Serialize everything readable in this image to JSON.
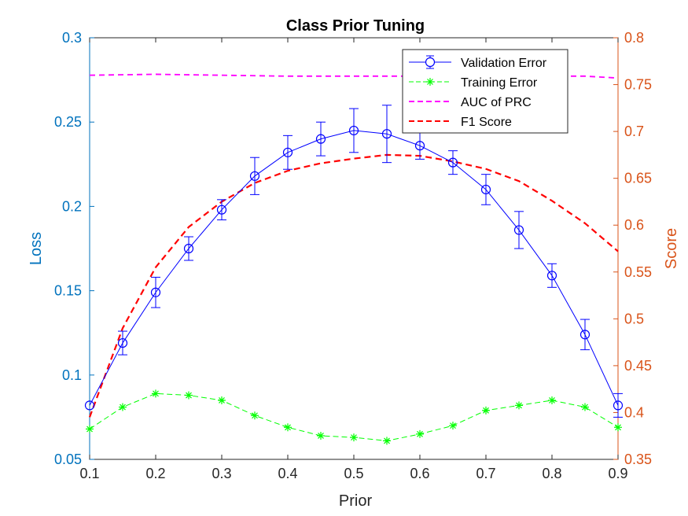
{
  "chart_data": {
    "type": "line",
    "title": "Class Prior Tuning",
    "xlabel": "Prior",
    "ylabel_left": "Loss",
    "ylabel_right": "Score",
    "xlim": [
      0.1,
      0.9
    ],
    "ylim_left": [
      0.05,
      0.3
    ],
    "ylim_right": [
      0.35,
      0.8
    ],
    "x_ticks": [
      "0.1",
      "0.2",
      "0.3",
      "0.4",
      "0.5",
      "0.6",
      "0.7",
      "0.8",
      "0.9"
    ],
    "y_left_ticks": [
      "0.05",
      "0.1",
      "0.15",
      "0.2",
      "0.25",
      "0.3"
    ],
    "y_right_ticks": [
      "0.35",
      "0.4",
      "0.45",
      "0.5",
      "0.55",
      "0.6",
      "0.65",
      "0.7",
      "0.75",
      "0.8"
    ],
    "grid": false,
    "legend_position": "top-right",
    "colors": {
      "left_axis": "#0072BD",
      "right_axis": "#D95319",
      "validation": "#0000FF",
      "training": "#00FF00",
      "auc": "#FF00FF",
      "f1": "#FF0000"
    },
    "series": [
      {
        "name": "Validation Error",
        "axis": "left",
        "style": "solid-circle-errorbar",
        "x": [
          0.1,
          0.15,
          0.2,
          0.25,
          0.3,
          0.35,
          0.4,
          0.45,
          0.5,
          0.55,
          0.6,
          0.65,
          0.7,
          0.75,
          0.8,
          0.85,
          0.9
        ],
        "values": [
          0.082,
          0.119,
          0.149,
          0.175,
          0.198,
          0.218,
          0.232,
          0.24,
          0.245,
          0.243,
          0.236,
          0.226,
          0.21,
          0.186,
          0.159,
          0.124,
          0.082
        ],
        "error": [
          0.0,
          0.007,
          0.009,
          0.007,
          0.006,
          0.011,
          0.01,
          0.01,
          0.013,
          0.017,
          0.008,
          0.007,
          0.009,
          0.011,
          0.007,
          0.009,
          0.007
        ]
      },
      {
        "name": "Training Error",
        "axis": "left",
        "style": "dashed-star",
        "x": [
          0.1,
          0.15,
          0.2,
          0.25,
          0.3,
          0.35,
          0.4,
          0.45,
          0.5,
          0.55,
          0.6,
          0.65,
          0.7,
          0.75,
          0.8,
          0.85,
          0.9
        ],
        "values": [
          0.068,
          0.081,
          0.089,
          0.088,
          0.085,
          0.076,
          0.069,
          0.064,
          0.063,
          0.061,
          0.065,
          0.07,
          0.079,
          0.082,
          0.085,
          0.081,
          0.069
        ]
      },
      {
        "name": "AUC of PRC",
        "axis": "right",
        "style": "dashed",
        "x": [
          0.1,
          0.2,
          0.3,
          0.4,
          0.5,
          0.6,
          0.7,
          0.8,
          0.85,
          0.9
        ],
        "values": [
          0.76,
          0.761,
          0.76,
          0.759,
          0.759,
          0.759,
          0.759,
          0.759,
          0.759,
          0.757
        ]
      },
      {
        "name": "F1 Score",
        "axis": "right",
        "style": "dashed",
        "x": [
          0.1,
          0.15,
          0.2,
          0.25,
          0.3,
          0.35,
          0.4,
          0.45,
          0.5,
          0.55,
          0.6,
          0.65,
          0.7,
          0.75,
          0.8,
          0.85,
          0.9
        ],
        "values": [
          0.395,
          0.49,
          0.555,
          0.598,
          0.625,
          0.645,
          0.658,
          0.666,
          0.671,
          0.675,
          0.674,
          0.668,
          0.66,
          0.647,
          0.626,
          0.602,
          0.572
        ]
      }
    ]
  }
}
